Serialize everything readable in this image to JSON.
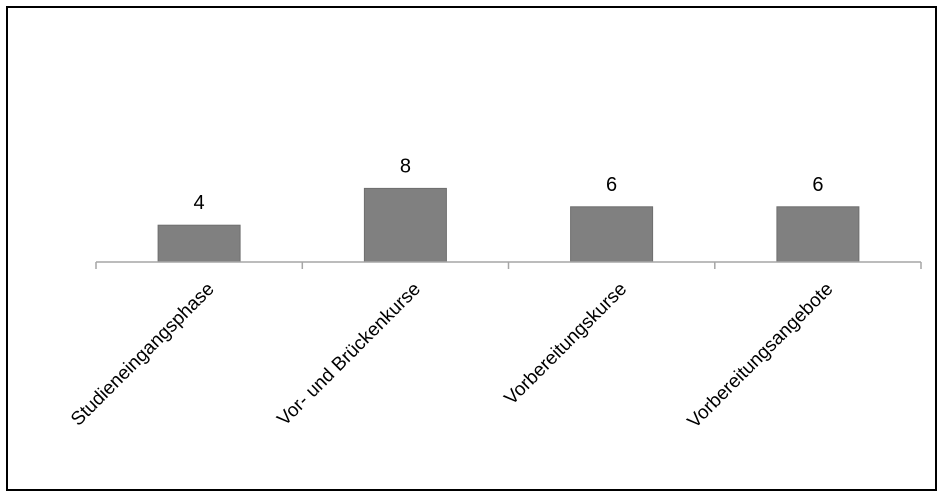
{
  "chart_data": {
    "type": "bar",
    "categories": [
      "Studieneingangsphase",
      "Vor- und Brückenkurse",
      "Vorbereitungskurse",
      "Vorbereitungsangebote"
    ],
    "values": [
      4,
      8,
      6,
      6
    ],
    "data_labels": [
      "4",
      "8",
      "6",
      "6"
    ],
    "title": "",
    "xlabel": "",
    "ylabel": "",
    "ylim": [
      0,
      8
    ],
    "grid": false,
    "legend": "none",
    "colors": {
      "bar": "#808080",
      "bar_edge": "#6e6e6e",
      "axis": "#a6a6a6",
      "text": "#000000",
      "frame": "#000000"
    }
  }
}
